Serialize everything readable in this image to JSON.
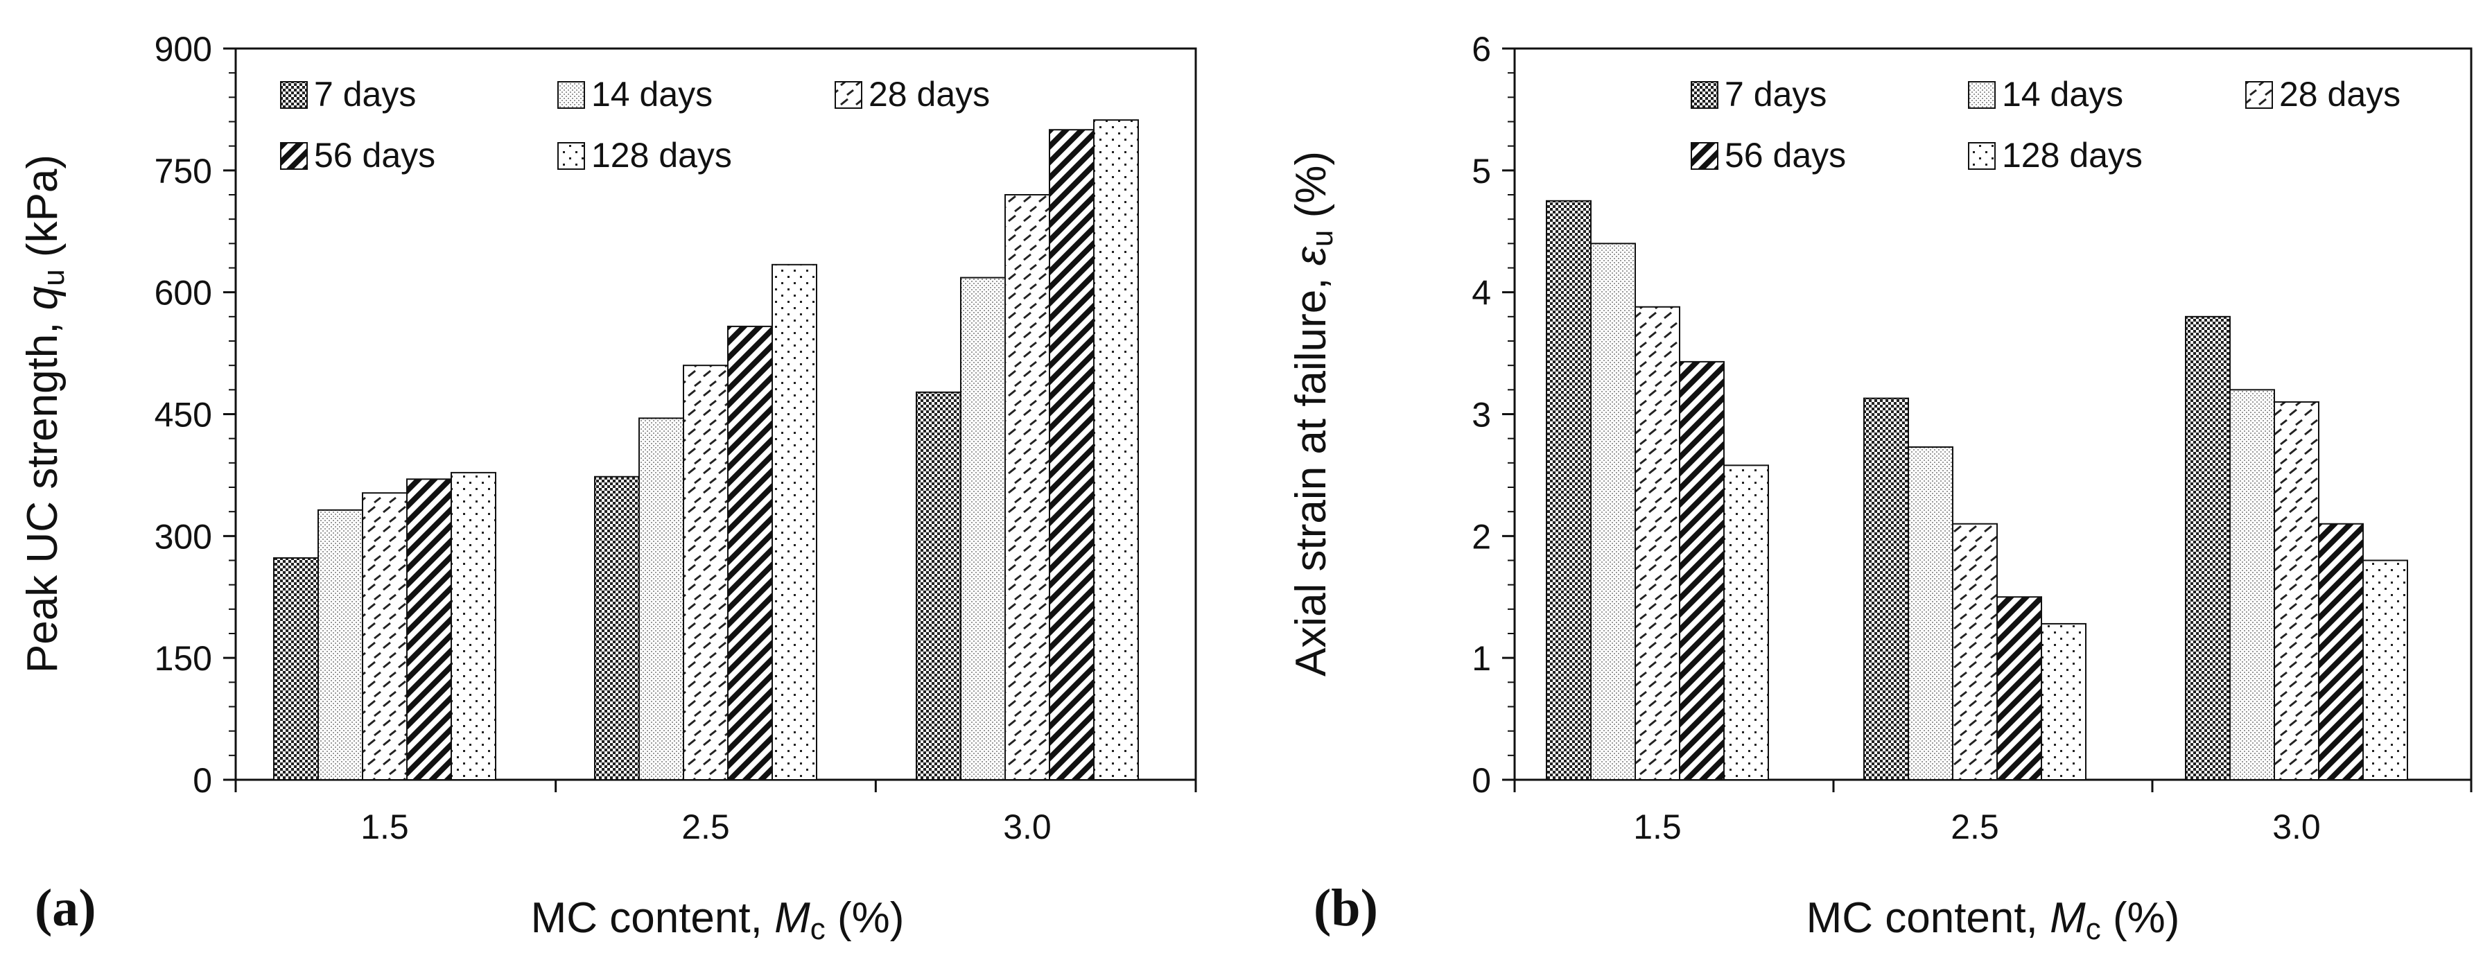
{
  "panel_labels": [
    "(a)",
    "(b)"
  ],
  "colors": {
    "axis": "#111111",
    "bar_fill": "#ffffff",
    "bar_stroke": "#111111"
  },
  "series_patterns": {
    "7 days": "dense-checker",
    "14 days": "light-stipple",
    "28 days": "dashed-dots",
    "56 days": "bold-diagonal",
    "128 days": "sparse-dots"
  },
  "chart_data": [
    {
      "type": "bar",
      "panel": "(a)",
      "categories": [
        "1.5",
        "2.5",
        "3.0"
      ],
      "series": [
        {
          "name": "7 days",
          "values": [
            273,
            373,
            477
          ]
        },
        {
          "name": "14 days",
          "values": [
            332,
            445,
            618
          ]
        },
        {
          "name": "28 days",
          "values": [
            353,
            510,
            720
          ]
        },
        {
          "name": "56 days",
          "values": [
            370,
            558,
            800
          ]
        },
        {
          "name": "128 days",
          "values": [
            378,
            634,
            812
          ]
        }
      ],
      "xlabel": "MC content, Mc (%)",
      "xlabel_parts": {
        "pre": "MC content, ",
        "var": "M",
        "sub": "c",
        "post": " (%)"
      },
      "ylabel": "Peak UC strength, qu (kPa)",
      "ylabel_parts": {
        "pre": "Peak UC strength, ",
        "var": "q",
        "sub": "u",
        "post": " (kPa)"
      },
      "ylim": [
        0,
        900
      ],
      "yticks": [
        "0",
        "150",
        "300",
        "450",
        "600",
        "750",
        "900"
      ],
      "grid": false,
      "legend_position": "top-left"
    },
    {
      "type": "bar",
      "panel": "(b)",
      "categories": [
        "1.5",
        "2.5",
        "3.0"
      ],
      "series": [
        {
          "name": "7 days",
          "values": [
            4.75,
            3.13,
            3.8
          ]
        },
        {
          "name": "14 days",
          "values": [
            4.4,
            2.73,
            3.2
          ]
        },
        {
          "name": "28 days",
          "values": [
            3.88,
            2.1,
            3.1
          ]
        },
        {
          "name": "56 days",
          "values": [
            3.43,
            1.5,
            2.1
          ]
        },
        {
          "name": "128 days",
          "values": [
            2.58,
            1.28,
            1.8
          ]
        }
      ],
      "xlabel": "MC content, Mc (%)",
      "xlabel_parts": {
        "pre": "MC content, ",
        "var": "M",
        "sub": "c",
        "post": " (%)"
      },
      "ylabel": "Axial strain at failure, εu (%)",
      "ylabel_parts": {
        "pre": "Axial strain at failure, ",
        "var": "ε",
        "sub": "u",
        "post": " (%)"
      },
      "ylim": [
        0,
        6
      ],
      "yticks": [
        "0",
        "1",
        "2",
        "3",
        "4",
        "5",
        "6"
      ],
      "grid": false,
      "legend_position": "top-right"
    }
  ]
}
